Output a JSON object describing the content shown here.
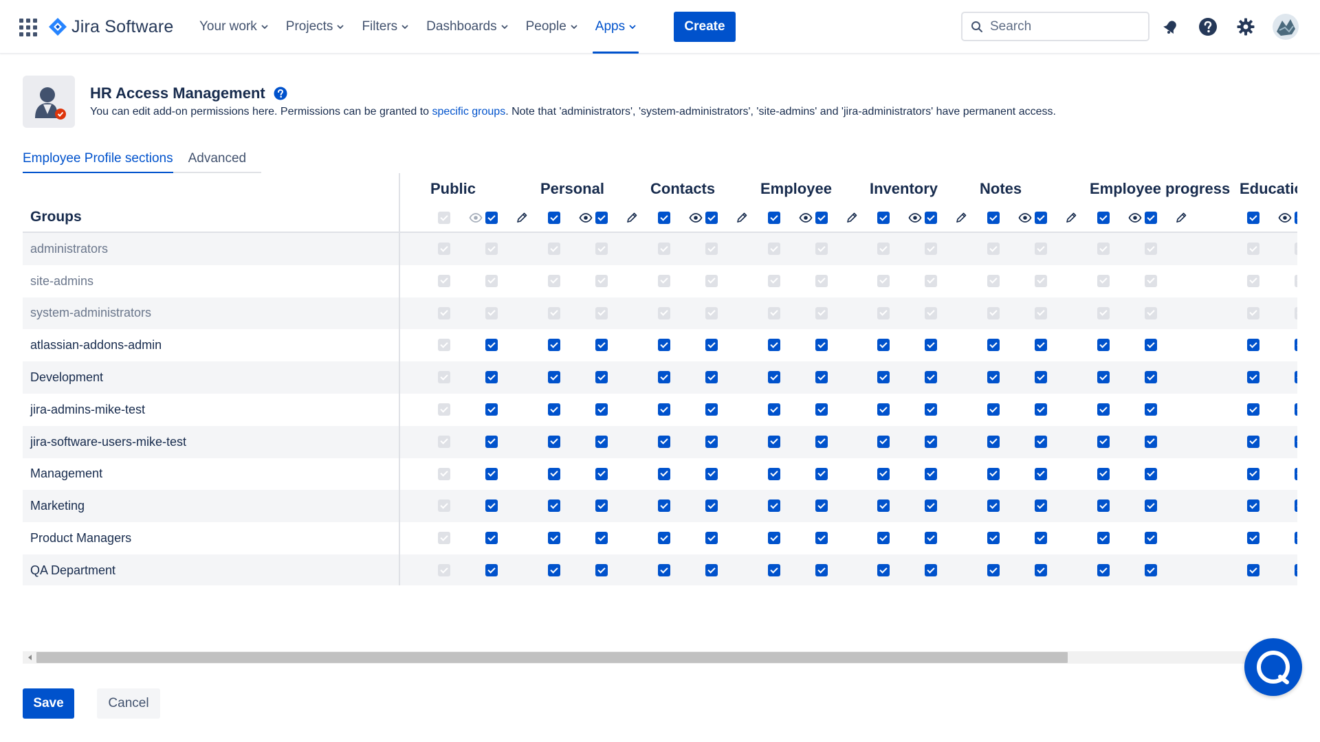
{
  "brand": {
    "name": "Jira Software"
  },
  "nav": {
    "items": [
      {
        "label": "Your work",
        "active": false
      },
      {
        "label": "Projects",
        "active": false
      },
      {
        "label": "Filters",
        "active": false
      },
      {
        "label": "Dashboards",
        "active": false
      },
      {
        "label": "People",
        "active": false
      },
      {
        "label": "Apps",
        "active": true
      }
    ],
    "create_label": "Create",
    "search_placeholder": "Search",
    "icons": [
      "notifications-icon",
      "help-icon",
      "settings-icon",
      "profile-avatar"
    ]
  },
  "header": {
    "title": "HR Access Management",
    "desc_before": "You can edit add-on permissions here. Permissions can be granted to ",
    "desc_link": "specific groups",
    "desc_after": ". Note that 'administrators', 'system-administrators', 'site-admins' and 'jira-administrators' have permanent access."
  },
  "tabs": [
    {
      "label": "Employee Profile sections",
      "active": true
    },
    {
      "label": "Advanced",
      "active": false
    }
  ],
  "table": {
    "groups_header": "Groups",
    "sections": [
      "Public",
      "Personal",
      "Contacts",
      "Employee",
      "Inventory",
      "Notes",
      "Employee progress",
      "Education"
    ],
    "header_view_checked": [
      false,
      true,
      true,
      true,
      true,
      true,
      true,
      true
    ],
    "header_edit_checked": [
      true,
      true,
      true,
      true,
      true,
      true,
      true,
      true
    ],
    "groups": [
      {
        "name": "administrators",
        "permanent": true
      },
      {
        "name": "site-admins",
        "permanent": true
      },
      {
        "name": "system-administrators",
        "permanent": true
      },
      {
        "name": "atlassian-addons-admin",
        "permanent": false
      },
      {
        "name": "Development",
        "permanent": false
      },
      {
        "name": "jira-admins-mike-test",
        "permanent": false
      },
      {
        "name": "jira-software-users-mike-test",
        "permanent": false
      },
      {
        "name": "Management",
        "permanent": false
      },
      {
        "name": "Marketing",
        "permanent": false
      },
      {
        "name": "Product Managers",
        "permanent": false
      },
      {
        "name": "QA Department",
        "permanent": false
      }
    ]
  },
  "footer": {
    "save_label": "Save",
    "cancel_label": "Cancel"
  },
  "colors": {
    "primary": "#0052cc",
    "disabled": "#dfe1e6",
    "text": "#172b4d",
    "muted": "#6b778c"
  }
}
